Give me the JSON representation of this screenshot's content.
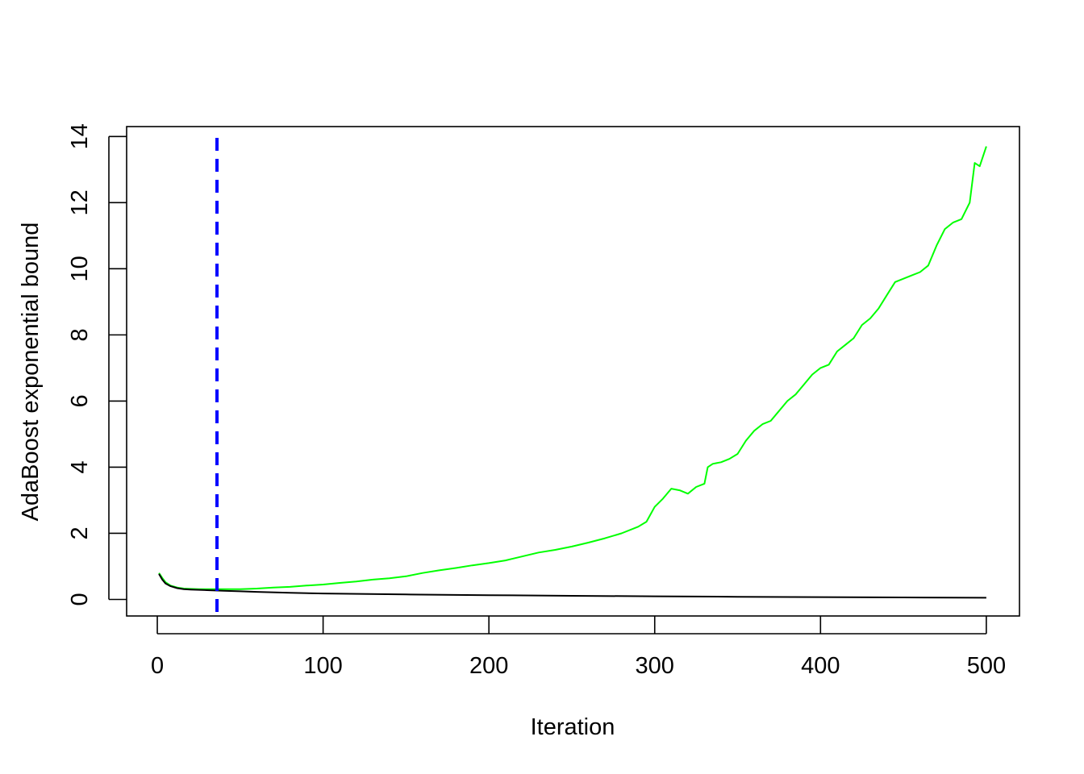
{
  "chart_data": {
    "type": "line",
    "title": "",
    "xlabel": "Iteration",
    "ylabel": "AdaBoost exponential bound",
    "xlim": [
      -18.5,
      520
    ],
    "ylim": [
      -0.5,
      14.3
    ],
    "xticks": [
      0,
      100,
      200,
      300,
      400,
      500
    ],
    "yticks": [
      0,
      2,
      4,
      6,
      8,
      10,
      12,
      14
    ],
    "xtick_labels": [
      "0",
      "100",
      "200",
      "300",
      "400",
      "500"
    ],
    "ytick_labels": [
      "0",
      "2",
      "4",
      "6",
      "8",
      "10",
      "12",
      "14"
    ],
    "grid": false,
    "legend": "none",
    "series": [
      {
        "color": "#00ff00",
        "x": [
          1,
          3,
          5,
          8,
          12,
          16,
          20,
          25,
          30,
          35,
          40,
          50,
          60,
          70,
          80,
          90,
          100,
          110,
          120,
          130,
          140,
          150,
          160,
          170,
          180,
          190,
          200,
          210,
          220,
          230,
          240,
          250,
          260,
          270,
          280,
          290,
          295,
          300,
          305,
          310,
          315,
          320,
          325,
          330,
          332,
          335,
          340,
          345,
          350,
          355,
          360,
          365,
          370,
          375,
          380,
          385,
          390,
          395,
          400,
          405,
          410,
          415,
          420,
          425,
          430,
          435,
          440,
          445,
          450,
          455,
          460,
          465,
          470,
          475,
          480,
          485,
          490,
          493,
          496,
          500
        ],
        "y": [
          0.8,
          0.65,
          0.52,
          0.42,
          0.36,
          0.33,
          0.32,
          0.31,
          0.31,
          0.31,
          0.31,
          0.31,
          0.33,
          0.36,
          0.38,
          0.42,
          0.45,
          0.5,
          0.54,
          0.6,
          0.64,
          0.7,
          0.8,
          0.88,
          0.95,
          1.03,
          1.1,
          1.18,
          1.3,
          1.42,
          1.5,
          1.6,
          1.72,
          1.85,
          2.0,
          2.2,
          2.35,
          2.8,
          3.05,
          3.35,
          3.3,
          3.2,
          3.4,
          3.5,
          4.0,
          4.1,
          4.15,
          4.25,
          4.4,
          4.8,
          5.1,
          5.3,
          5.4,
          5.7,
          6.0,
          6.2,
          6.5,
          6.8,
          7.0,
          7.1,
          7.5,
          7.7,
          7.9,
          8.3,
          8.5,
          8.8,
          9.2,
          9.6,
          9.7,
          9.8,
          9.9,
          10.1,
          10.7,
          11.2,
          11.4,
          11.5,
          12.0,
          13.2,
          13.1,
          13.7
        ]
      },
      {
        "color": "#000000",
        "x": [
          1,
          3,
          5,
          8,
          12,
          16,
          20,
          30,
          40,
          50,
          60,
          80,
          100,
          150,
          200,
          250,
          300,
          350,
          400,
          450,
          500
        ],
        "y": [
          0.77,
          0.6,
          0.48,
          0.4,
          0.34,
          0.31,
          0.3,
          0.28,
          0.26,
          0.245,
          0.23,
          0.2,
          0.18,
          0.15,
          0.13,
          0.11,
          0.095,
          0.08,
          0.07,
          0.06,
          0.05
        ]
      }
    ],
    "vlines": [
      {
        "x": 36,
        "color": "#0000ff",
        "style": "dashed"
      }
    ]
  }
}
